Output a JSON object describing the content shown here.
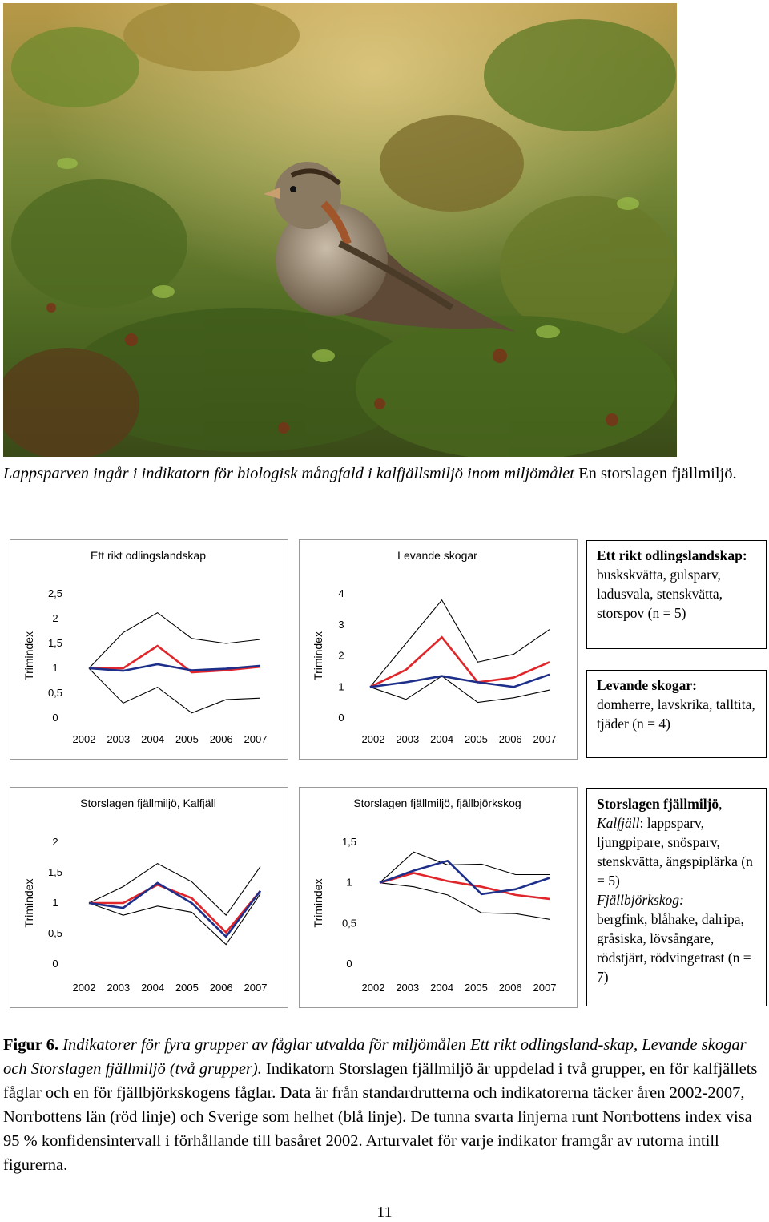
{
  "photo": {
    "icon": "lapland-bunting-photo",
    "colors": {
      "sky": "#c7a85a",
      "foliage": "#5a7a2a",
      "berry": "#8a3a20"
    }
  },
  "caption": {
    "italic": "Lappsparven ingår i indikatorn för biologisk mångfald i kalfjällsmiljö inom miljömålet",
    "plain": " En storslagen fjällmiljö."
  },
  "colors": {
    "norrbotten": "#e0262a",
    "sverige": "#1e2f8a",
    "ci": "#000000"
  },
  "chart_data": [
    {
      "type": "line",
      "title": "Ett rikt odlingslandskap",
      "ylabel": "Trimindex",
      "x": [
        "2002",
        "2003",
        "2004",
        "2005",
        "2006",
        "2007"
      ],
      "yticks": [
        "0",
        "0,5",
        "1",
        "1,5",
        "2",
        "2,5"
      ],
      "ylim": [
        0,
        2.5
      ],
      "series": [
        {
          "role": "norrbotten",
          "values": [
            1.0,
            1.0,
            1.45,
            0.92,
            0.96,
            1.03
          ]
        },
        {
          "role": "sverige",
          "values": [
            1.0,
            0.95,
            1.08,
            0.96,
            0.99,
            1.05
          ]
        },
        {
          "role": "ci_upper",
          "values": [
            1.0,
            1.72,
            2.12,
            1.6,
            1.5,
            1.58
          ]
        },
        {
          "role": "ci_lower",
          "values": [
            1.0,
            0.3,
            0.62,
            0.1,
            0.37,
            0.4
          ]
        }
      ]
    },
    {
      "type": "line",
      "title": "Levande skogar",
      "ylabel": "Trimindex",
      "x": [
        "2002",
        "2003",
        "2004",
        "2005",
        "2006",
        "2007"
      ],
      "yticks": [
        "0",
        "1",
        "2",
        "3",
        "4"
      ],
      "ylim": [
        0,
        4
      ],
      "series": [
        {
          "role": "norrbotten",
          "values": [
            1.0,
            1.55,
            2.6,
            1.15,
            1.3,
            1.8
          ]
        },
        {
          "role": "sverige",
          "values": [
            1.0,
            1.15,
            1.35,
            1.15,
            1.0,
            1.4
          ]
        },
        {
          "role": "ci_upper",
          "values": [
            1.0,
            2.4,
            3.8,
            1.8,
            2.05,
            2.85
          ]
        },
        {
          "role": "ci_lower",
          "values": [
            1.0,
            0.6,
            1.35,
            0.5,
            0.65,
            0.9
          ]
        }
      ]
    },
    {
      "type": "line",
      "title": "Storslagen fjällmiljö, Kalfjäll",
      "ylabel": "Trimindex",
      "x": [
        "2002",
        "2003",
        "2004",
        "2005",
        "2006",
        "2007"
      ],
      "yticks": [
        "0",
        "0,5",
        "1",
        "1,5",
        "2"
      ],
      "ylim": [
        0,
        2
      ],
      "series": [
        {
          "role": "norrbotten",
          "values": [
            1.0,
            1.0,
            1.3,
            1.08,
            0.52,
            1.2
          ]
        },
        {
          "role": "sverige",
          "values": [
            1.0,
            0.92,
            1.33,
            1.0,
            0.45,
            1.2
          ]
        },
        {
          "role": "ci_upper",
          "values": [
            1.0,
            1.27,
            1.65,
            1.35,
            0.8,
            1.6
          ]
        },
        {
          "role": "ci_lower",
          "values": [
            1.0,
            0.8,
            0.95,
            0.85,
            0.32,
            1.15
          ]
        }
      ]
    },
    {
      "type": "line",
      "title": "Storslagen fjällmiljö, fjällbjörkskog",
      "ylabel": "Trimindex",
      "x": [
        "2002",
        "2003",
        "2004",
        "2005",
        "2006",
        "2007"
      ],
      "yticks": [
        "0",
        "0,5",
        "1",
        "1,5"
      ],
      "ylim": [
        0,
        1.5
      ],
      "series": [
        {
          "role": "norrbotten",
          "values": [
            1.0,
            1.12,
            1.02,
            0.95,
            0.85,
            0.8
          ]
        },
        {
          "role": "sverige",
          "values": [
            1.0,
            1.15,
            1.27,
            0.86,
            0.92,
            1.06
          ]
        },
        {
          "role": "ci_upper",
          "values": [
            1.0,
            1.38,
            1.22,
            1.23,
            1.1,
            1.1
          ]
        },
        {
          "role": "ci_lower",
          "values": [
            1.0,
            0.95,
            0.85,
            0.63,
            0.62,
            0.55
          ]
        }
      ]
    }
  ],
  "boxes": {
    "odling": {
      "title": "Ett rikt odlingslandskap:",
      "text": "buskskvätta, gulsparv, ladusvala, stenskvätta, storspov (n = 5)"
    },
    "skog": {
      "title": "Levande skogar:",
      "text": "domherre, lavskrika, talltita, tjäder (n = 4)"
    },
    "fjall": {
      "title": "Storslagen fjällmiljö",
      "sep": ",",
      "sub1": "Kalfjäll",
      "text1": ": lappsparv, ljungpipare, snösparv, stenskvätta, ängspiplärka (n = 5)",
      "sub2": "Fjällbjörkskog:",
      "text2": "bergfink, blåhake, dalripa, gråsiska, lövsångare, rödstjärt, rödvingetrast (n = 7)"
    }
  },
  "figure_caption": {
    "label": "Figur 6.",
    "italic": " Indikatorer för fyra grupper av fåglar utvalda för miljömålen Ett rikt odlingsland-skap, Levande skogar och Storslagen fjällmiljö (två grupper).",
    "plain": " Indikatorn Storslagen fjällmiljö är uppdelad i två grupper, en för kalfjällets fåglar och en för fjällbjörkskogens fåglar. Data är från standardrutterna och indikatorerna täcker åren 2002-2007, Norrbottens län (röd linje) och Sverige som helhet (blå linje). De tunna svarta linjerna runt Norrbottens index visa 95 % konfidensintervall i förhållande till basåret 2002. Arturvalet för varje indikator framgår av rutorna intill figurerna."
  },
  "page_number": "11"
}
